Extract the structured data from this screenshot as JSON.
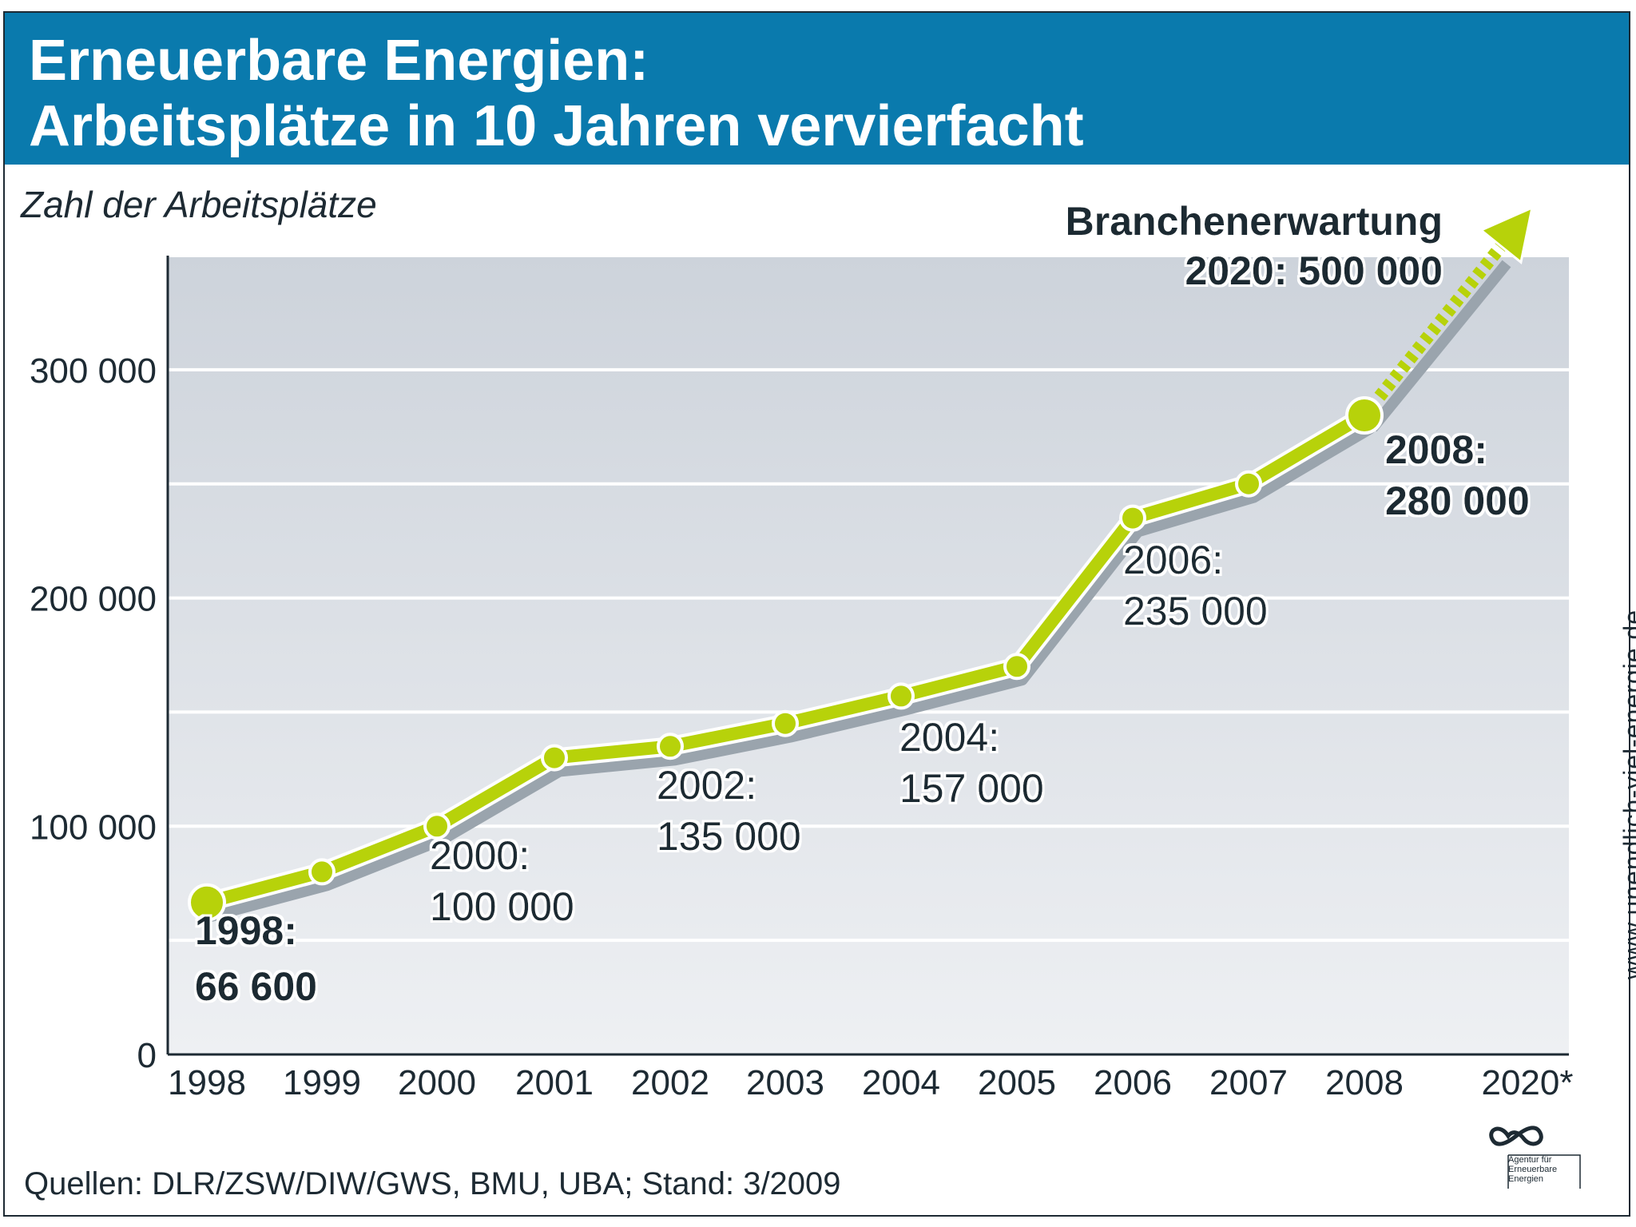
{
  "header": {
    "title_line1": "Erneuerbare Energien:",
    "title_line2": "Arbeitsplätze in 10 Jahren vervierfacht"
  },
  "footer": {
    "sources": "Quellen: DLR/ZSW/DIW/GWS, BMU, UBA; Stand: 3/2009",
    "website": "www.unendlich-viel-energie.de",
    "logo_text": [
      "Agentur für",
      "Erneuerbare",
      "Energien"
    ]
  },
  "colors": {
    "header_bg": "#0a7aad",
    "line": "#b7d20a",
    "shadow": "#9aa4ad",
    "plot_top": "#cdd3db",
    "plot_bottom": "#eef0f3"
  },
  "chart_data": {
    "type": "line",
    "title": "Erneuerbare Energien: Arbeitsplätze in 10 Jahren vervierfacht",
    "ylabel": "Zahl der Arbeitsplätze",
    "xlabel": "",
    "ylim": [
      0,
      350000
    ],
    "yticks": [
      0,
      100000,
      200000,
      300000
    ],
    "ytick_labels": [
      "0",
      "100 000",
      "200 000",
      "300 000"
    ],
    "categories": [
      "1998",
      "1999",
      "2000",
      "2001",
      "2002",
      "2003",
      "2004",
      "2005",
      "2006",
      "2007",
      "2008",
      "2020*"
    ],
    "series": [
      {
        "name": "Arbeitsplätze",
        "x": [
          "1998",
          "1999",
          "2000",
          "2001",
          "2002",
          "2003",
          "2004",
          "2005",
          "2006",
          "2007",
          "2008"
        ],
        "values": [
          66600,
          80000,
          100000,
          130000,
          135000,
          145000,
          157000,
          170000,
          235000,
          250000,
          280000
        ]
      }
    ],
    "projection": {
      "from": "2008",
      "to": "2020*",
      "value": 500000,
      "style": "dotted-arrow"
    },
    "annotations": [
      {
        "x": "1998",
        "line1": "1998:",
        "line2": "66 600",
        "bold": true
      },
      {
        "x": "2000",
        "line1": "2000:",
        "line2": "100 000",
        "bold": false
      },
      {
        "x": "2002",
        "line1": "2002:",
        "line2": "135 000",
        "bold": false
      },
      {
        "x": "2004",
        "line1": "2004:",
        "line2": "157 000",
        "bold": false
      },
      {
        "x": "2006",
        "line1": "2006:",
        "line2": "235 000",
        "bold": false
      },
      {
        "x": "2008",
        "line1": "2008:",
        "line2": "280 000",
        "bold": true
      },
      {
        "x": "2020*",
        "line1": "Branchenerwartung",
        "line2": "2020: 500 000",
        "bold": true
      }
    ]
  }
}
